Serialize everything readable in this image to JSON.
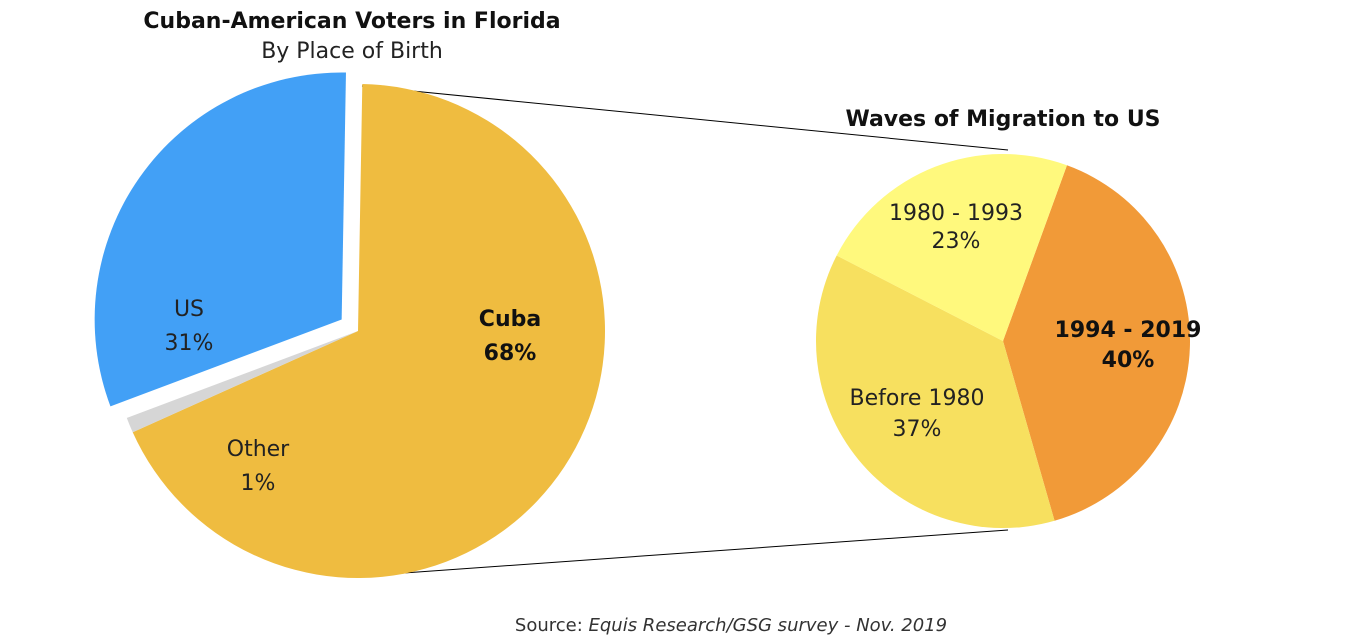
{
  "chart_data": [
    {
      "type": "pie",
      "title": "Cuban-American Voters in Florida",
      "subtitle": "By Place of Birth",
      "slices": [
        {
          "label": "Cuba",
          "value": 68,
          "display": "68%",
          "color": "#EFBC40",
          "bold": true
        },
        {
          "label": "Other",
          "value": 1,
          "display": "1%",
          "color": "#D6D6D6",
          "bold": false
        },
        {
          "label": "US",
          "value": 31,
          "display": "31%",
          "color": "#42A0F6",
          "bold": false
        }
      ]
    },
    {
      "type": "pie",
      "title": "Waves of Migration to US",
      "subtitle": "",
      "slices": [
        {
          "label": "1994 - 2019",
          "value": 40,
          "display": "40%",
          "color": "#F19A38",
          "bold": true
        },
        {
          "label": "Before 1980",
          "value": 37,
          "display": "37%",
          "color": "#F7E05F",
          "bold": false
        },
        {
          "label": "1980 - 1993",
          "value": 23,
          "display": "23%",
          "color": "#FFF97D",
          "bold": false
        }
      ]
    }
  ],
  "source": {
    "prefix": "Source: ",
    "text": "Equis Research/GSG survey - Nov. 2019"
  }
}
